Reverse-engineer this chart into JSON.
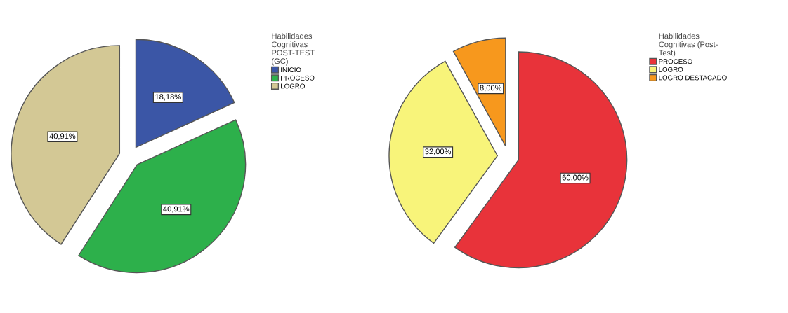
{
  "chart_data": [
    {
      "type": "pie",
      "legend_title": "Habilidades\nCognitivas\nPOST-TEST\n(GC)",
      "categories": [
        "INICIO",
        "PROCESO",
        "LOGRO"
      ],
      "values": [
        18.18,
        40.91,
        40.91
      ],
      "colors": [
        "#3b56a6",
        "#2db04b",
        "#d3c895"
      ],
      "value_labels": [
        "18,18%",
        "40,91%",
        "40,91%"
      ],
      "legend": "top right"
    },
    {
      "type": "pie",
      "legend_title": "Habilidades\nCognitivas (Post-\nTest)",
      "categories": [
        "PROCESO",
        "LOGRO",
        "LOGRO DESTACADO"
      ],
      "values": [
        60,
        32,
        8
      ],
      "colors": [
        "#e8333a",
        "#f8f47a",
        "#f7981d"
      ],
      "value_labels": [
        "60,00%",
        "32,00%",
        "8,00%"
      ],
      "legend": "top right"
    }
  ]
}
